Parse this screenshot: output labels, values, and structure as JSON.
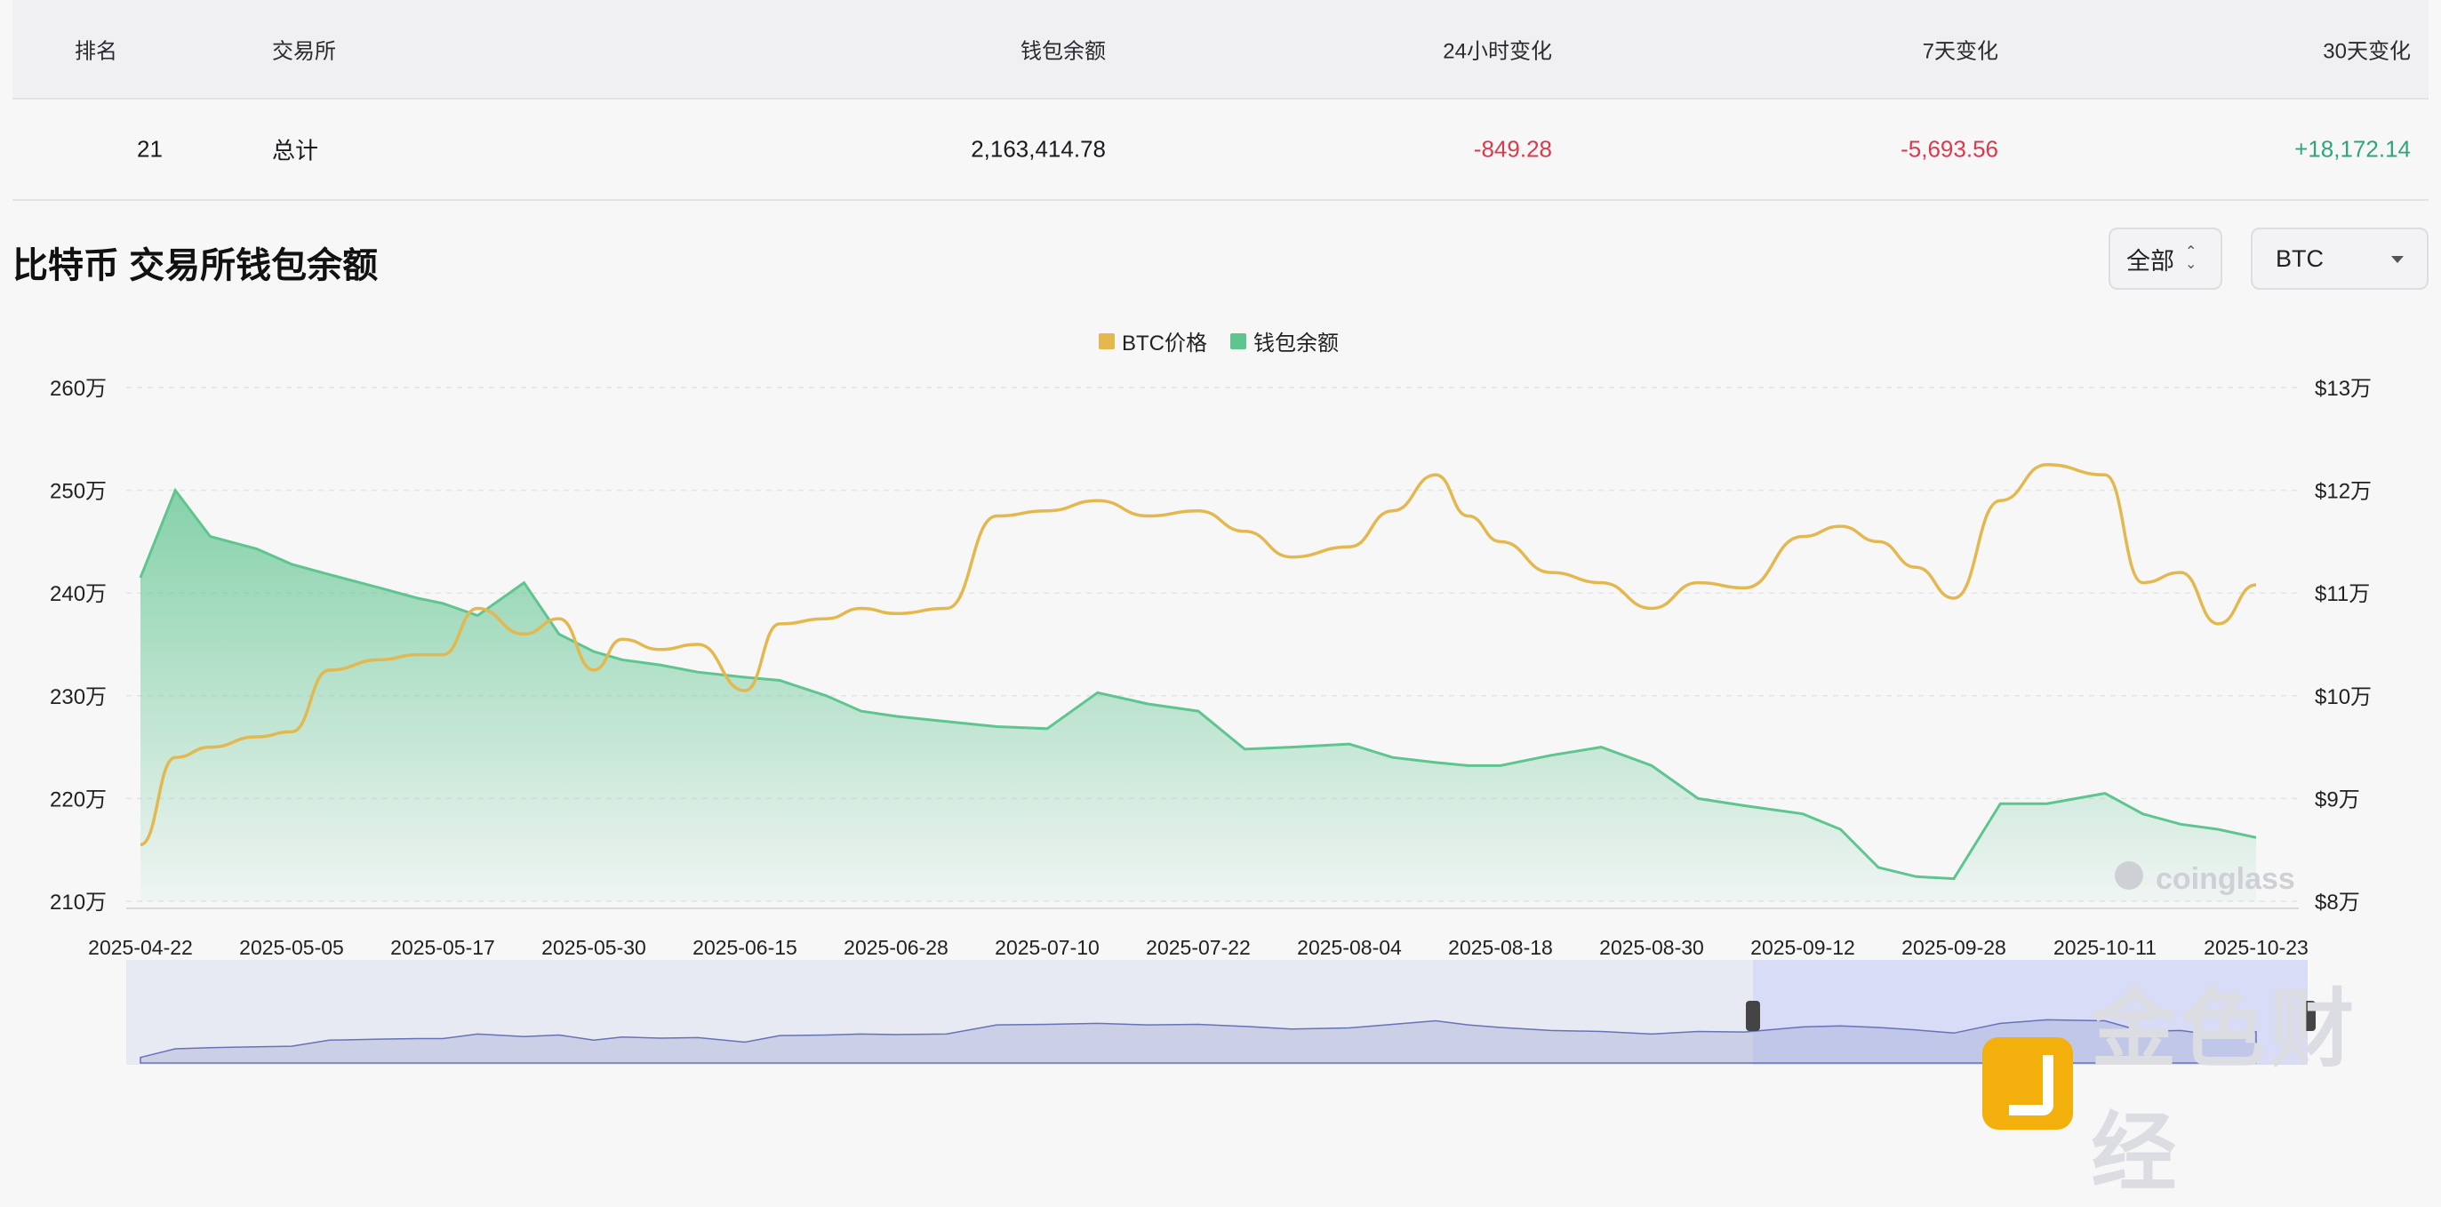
{
  "table": {
    "headers": {
      "rank": "排名",
      "exchange": "交易所",
      "balance": "钱包余额",
      "change_24h": "24小时变化",
      "change_7d": "7天变化",
      "change_30d": "30天变化"
    },
    "row": {
      "rank": "21",
      "exchange": "总计",
      "balance": "2,163,414.78",
      "change_24h": "-849.28",
      "change_7d": "-5,693.56",
      "change_30d": "+18,172.14"
    }
  },
  "title": "比特币 交易所钱包余额",
  "controls": {
    "range": "全部",
    "coin": "BTC"
  },
  "legend": [
    {
      "name": "BTC价格",
      "color": "#e3b84f"
    },
    {
      "name": "钱包余额",
      "color": "#5fc58f"
    }
  ],
  "watermarks": {
    "coinglass": "coinglass",
    "jinse": "金色财经"
  },
  "chart_data": {
    "type": "area",
    "x_ticks": [
      "2025-04-22",
      "2025-05-05",
      "2025-05-17",
      "2025-05-30",
      "2025-06-15",
      "2025-06-28",
      "2025-07-10",
      "2025-07-22",
      "2025-08-04",
      "2025-08-18",
      "2025-08-30",
      "2025-09-12",
      "2025-09-28",
      "2025-10-11",
      "2025-10-23"
    ],
    "y_left_ticks": [
      "260万",
      "250万",
      "240万",
      "230万",
      "220万",
      "210万"
    ],
    "y_right_ticks": [
      "$13万",
      "$12万",
      "$11万",
      "$10万",
      "$9万",
      "$8万"
    ],
    "y_left_lim": [
      2100000,
      2600000
    ],
    "y_right_lim": [
      80000,
      130000
    ],
    "x": [
      "2025-04-22",
      "2025-04-25",
      "2025-04-28",
      "2025-05-02",
      "2025-05-05",
      "2025-05-08",
      "2025-05-12",
      "2025-05-15",
      "2025-05-17",
      "2025-05-20",
      "2025-05-24",
      "2025-05-27",
      "2025-05-30",
      "2025-06-02",
      "2025-06-06",
      "2025-06-10",
      "2025-06-15",
      "2025-06-18",
      "2025-06-22",
      "2025-06-25",
      "2025-06-28",
      "2025-07-02",
      "2025-07-06",
      "2025-07-10",
      "2025-07-14",
      "2025-07-18",
      "2025-07-22",
      "2025-07-26",
      "2025-07-30",
      "2025-08-04",
      "2025-08-08",
      "2025-08-12",
      "2025-08-15",
      "2025-08-18",
      "2025-08-22",
      "2025-08-26",
      "2025-08-30",
      "2025-09-03",
      "2025-09-07",
      "2025-09-12",
      "2025-09-16",
      "2025-09-20",
      "2025-09-24",
      "2025-09-28",
      "2025-10-02",
      "2025-10-06",
      "2025-10-11",
      "2025-10-14",
      "2025-10-17",
      "2025-10-20",
      "2025-10-23"
    ],
    "series": [
      {
        "name": "钱包余额",
        "axis": "left",
        "color": "#5fc58f",
        "values": [
          2415000,
          2500000,
          2455000,
          2443000,
          2428000,
          2418000,
          2405000,
          2395000,
          2390000,
          2378000,
          2410000,
          2360000,
          2343000,
          2335000,
          2330000,
          2323000,
          2318000,
          2315000,
          2300000,
          2285000,
          2280000,
          2275000,
          2270000,
          2268000,
          2303000,
          2292000,
          2285000,
          2248000,
          2250000,
          2253000,
          2240000,
          2235000,
          2232000,
          2232000,
          2242000,
          2250000,
          2232000,
          2200000,
          2193000,
          2185000,
          2170000,
          2133000,
          2124000,
          2122000,
          2195000,
          2195000,
          2205000,
          2185000,
          2175000,
          2170000,
          2162000
        ]
      },
      {
        "name": "BTC价格",
        "axis": "right",
        "color": "#e3b84f",
        "values": [
          85500,
          94000,
          95000,
          96000,
          96500,
          102500,
          103500,
          104000,
          104000,
          108500,
          106000,
          107500,
          102500,
          105500,
          104500,
          105000,
          100500,
          107000,
          107500,
          108500,
          108000,
          108500,
          117500,
          118000,
          119000,
          117500,
          118000,
          116000,
          113500,
          114500,
          118000,
          121500,
          117500,
          115000,
          112000,
          111000,
          108500,
          111000,
          110500,
          115500,
          116500,
          115000,
          112500,
          109500,
          119000,
          122500,
          121500,
          111000,
          112000,
          107000,
          110800
        ]
      }
    ]
  }
}
